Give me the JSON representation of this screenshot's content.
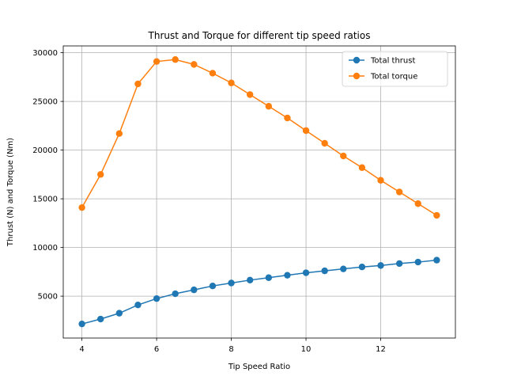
{
  "chart_data": {
    "type": "line",
    "title": "Thrust and Torque for different tip speed ratios",
    "xlabel": "Tip Speed Ratio",
    "ylabel": "Thrust (N) and Torque (Nm)",
    "xlim": [
      3.5,
      14.0
    ],
    "ylim": [
      700,
      30700
    ],
    "xticks": [
      4,
      6,
      8,
      10,
      12
    ],
    "yticks": [
      5000,
      10000,
      15000,
      20000,
      25000,
      30000
    ],
    "grid": true,
    "legend_position": "top-right",
    "x": [
      4.0,
      4.5,
      5.0,
      5.5,
      6.0,
      6.5,
      7.0,
      7.5,
      8.0,
      8.5,
      9.0,
      9.5,
      10.0,
      10.5,
      11.0,
      11.5,
      12.0,
      12.5,
      13.0,
      13.5
    ],
    "series": [
      {
        "name": "Total thrust",
        "color": "#1f77b4",
        "values": [
          2150,
          2650,
          3250,
          4100,
          4750,
          5250,
          5650,
          6050,
          6350,
          6650,
          6900,
          7150,
          7400,
          7600,
          7800,
          8000,
          8150,
          8350,
          8500,
          8700
        ]
      },
      {
        "name": "Total torque",
        "color": "#ff7f0e",
        "values": [
          14100,
          17500,
          21700,
          26800,
          29100,
          29300,
          28800,
          27900,
          26900,
          25700,
          24500,
          23300,
          22000,
          20700,
          19400,
          18200,
          16900,
          15700,
          14500,
          13300
        ]
      }
    ]
  }
}
